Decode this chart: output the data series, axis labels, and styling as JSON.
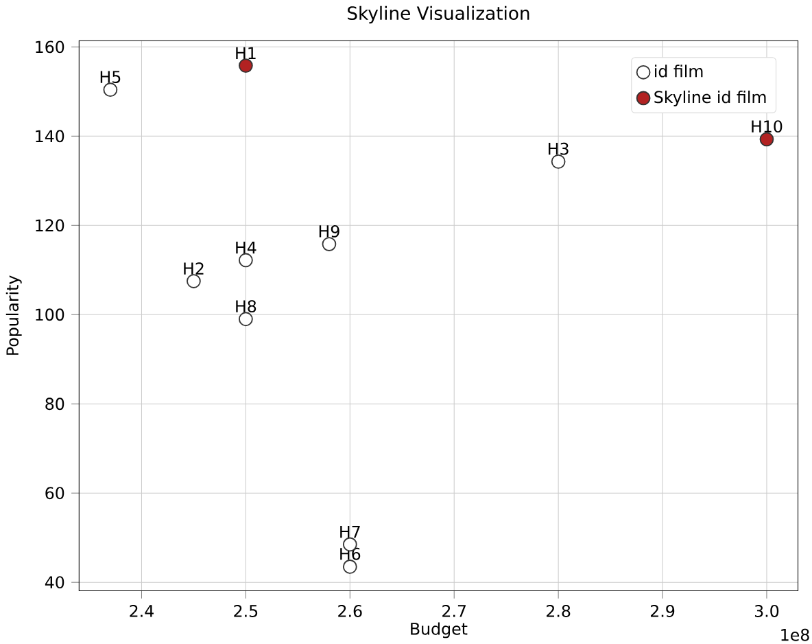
{
  "chart_data": {
    "type": "scatter",
    "title": "Skyline Visualization",
    "xlabel": "Budget",
    "ylabel": "Popularity",
    "xlim": [
      2.34,
      3.03
    ],
    "ylim": [
      38.1,
      161.4
    ],
    "xticks": [
      2.4,
      2.5,
      2.6,
      2.7,
      2.8,
      2.9,
      {
        "value": 3.0,
        "label": "3.0"
      }
    ],
    "yticks": [
      40,
      60,
      80,
      100,
      120,
      140,
      160
    ],
    "grid": true,
    "legend": "top right",
    "marker": "circle",
    "series": [
      {
        "name": "id film",
        "color": "#ffffff",
        "x": [
          2.37,
          2.45,
          2.5,
          2.5,
          2.58,
          2.8,
          2.6,
          2.6
        ],
        "values": [
          150.4,
          107.5,
          112.2,
          99,
          115.8,
          134.3,
          48.5,
          43.5
        ]
      },
      {
        "name": "Skyline id film",
        "color": "#b22222",
        "x": [
          2.5,
          3.0
        ],
        "values": [
          155.8,
          139.3
        ]
      }
    ],
    "annotations": [
      "1e8",
      {
        "text": "H5",
        "x": 2.37,
        "y": 150.4
      },
      {
        "text": "H2",
        "x": 2.45,
        "y": 107.5
      },
      {
        "text": "H4",
        "x": 2.5,
        "y": 112.2
      },
      {
        "text": "H8",
        "x": 2.5,
        "y": 99
      },
      {
        "text": "H9",
        "x": 2.58,
        "y": 115.8
      },
      {
        "text": "H3",
        "x": 2.8,
        "y": 134.3
      },
      {
        "text": "H7",
        "x": 2.6,
        "y": 48.5
      },
      {
        "text": "H6",
        "x": 2.6,
        "y": 43.5
      },
      {
        "text": "H1",
        "x": 2.5,
        "y": 155.8
      },
      {
        "text": "H10",
        "x": 3.0,
        "y": 139.3
      }
    ]
  }
}
